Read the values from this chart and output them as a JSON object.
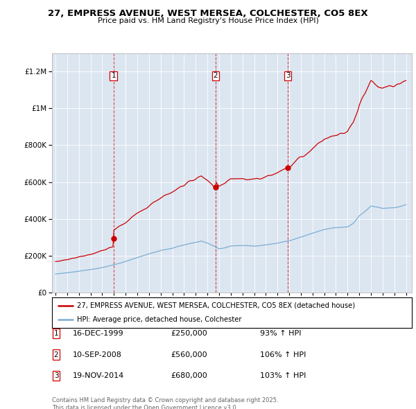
{
  "title1": "27, EMPRESS AVENUE, WEST MERSEA, COLCHESTER, CO5 8EX",
  "title2": "Price paid vs. HM Land Registry's House Price Index (HPI)",
  "bg_color": "#dce6f1",
  "red_color": "#cc0000",
  "blue_color": "#7aadd4",
  "ylim": [
    0,
    1300000
  ],
  "xlim": [
    1994.7,
    2025.5
  ],
  "sale_dates": [
    1999.96,
    2008.69,
    2014.88
  ],
  "sale_prices": [
    250000,
    560000,
    680000
  ],
  "sale_labels": [
    "1",
    "2",
    "3"
  ],
  "sale_date_strs": [
    "16-DEC-1999",
    "10-SEP-2008",
    "19-NOV-2014"
  ],
  "sale_price_strs": [
    "£250,000",
    "£560,000",
    "£680,000"
  ],
  "sale_hpi_strs": [
    "93% ↑ HPI",
    "106% ↑ HPI",
    "103% ↑ HPI"
  ],
  "legend_line1": "27, EMPRESS AVENUE, WEST MERSEA, COLCHESTER, CO5 8EX (detached house)",
  "legend_line2": "HPI: Average price, detached house, Colchester",
  "footnote": "Contains HM Land Registry data © Crown copyright and database right 2025.\nThis data is licensed under the Open Government Licence v3.0."
}
